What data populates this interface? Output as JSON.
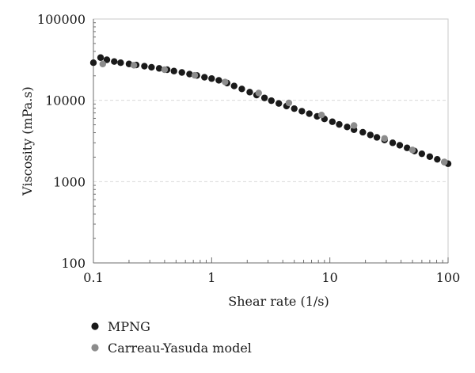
{
  "chart_data": {
    "type": "scatter",
    "title": "",
    "xlabel": "Shear rate (1/s)",
    "ylabel": "Viscosity (mPa.s)",
    "xscale": "log",
    "yscale": "log",
    "xlim": [
      0.1,
      100
    ],
    "ylim": [
      100,
      100000
    ],
    "x_ticks": [
      "0.1",
      "1",
      "10",
      "100"
    ],
    "y_ticks": [
      "100",
      "1000",
      "10000",
      "100000"
    ],
    "grid": "horizontal dashed",
    "legend_position": "bottom-left",
    "series": [
      {
        "name": "MPNG",
        "color": "#1a1a1a",
        "points": [
          [
            0.1,
            29000
          ],
          [
            0.115,
            33500
          ],
          [
            0.13,
            31500
          ],
          [
            0.15,
            30000
          ],
          [
            0.17,
            29000
          ],
          [
            0.2,
            28000
          ],
          [
            0.23,
            27200
          ],
          [
            0.27,
            26300
          ],
          [
            0.31,
            25500
          ],
          [
            0.36,
            24700
          ],
          [
            0.42,
            23800
          ],
          [
            0.48,
            22900
          ],
          [
            0.56,
            22000
          ],
          [
            0.65,
            21000
          ],
          [
            0.75,
            20200
          ],
          [
            0.87,
            19200
          ],
          [
            1.0,
            18500
          ],
          [
            1.15,
            17600
          ],
          [
            1.35,
            16300
          ],
          [
            1.55,
            15000
          ],
          [
            1.8,
            13800
          ],
          [
            2.1,
            12600
          ],
          [
            2.4,
            11600
          ],
          [
            2.8,
            10700
          ],
          [
            3.2,
            9900
          ],
          [
            3.7,
            9150
          ],
          [
            4.3,
            8500
          ],
          [
            5.0,
            7900
          ],
          [
            5.8,
            7350
          ],
          [
            6.7,
            6850
          ],
          [
            7.8,
            6350
          ],
          [
            9.0,
            5900
          ],
          [
            10.5,
            5450
          ],
          [
            12.0,
            5050
          ],
          [
            14.0,
            4700
          ],
          [
            16.0,
            4350
          ],
          [
            19.0,
            4050
          ],
          [
            22.0,
            3750
          ],
          [
            25.0,
            3500
          ],
          [
            29.0,
            3250
          ],
          [
            34.0,
            3000
          ],
          [
            39.0,
            2800
          ],
          [
            45.0,
            2600
          ],
          [
            52.0,
            2380
          ],
          [
            60.0,
            2200
          ],
          [
            70.0,
            2030
          ],
          [
            81.0,
            1880
          ],
          [
            93.0,
            1740
          ],
          [
            100.0,
            1660
          ]
        ]
      },
      {
        "name": "Carreau-Yasuda model",
        "color": "#8c8c8c",
        "points": [
          [
            0.12,
            28000
          ],
          [
            0.22,
            27000
          ],
          [
            0.4,
            23800
          ],
          [
            0.72,
            20300
          ],
          [
            1.3,
            16800
          ],
          [
            2.5,
            12300
          ],
          [
            4.5,
            9300
          ],
          [
            8.5,
            6600
          ],
          [
            16.0,
            4900
          ],
          [
            29.0,
            3400
          ],
          [
            50.0,
            2450
          ],
          [
            93.0,
            1740
          ]
        ]
      }
    ]
  }
}
